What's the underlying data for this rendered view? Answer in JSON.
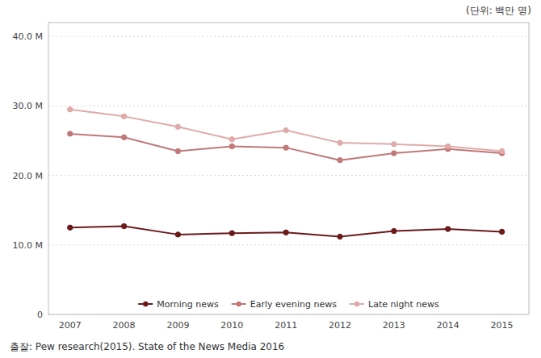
{
  "chart_data": {
    "type": "line",
    "annotations": [
      "(단위: 백만 명)",
      "출잘: Pew research(2015). State of the News Media 2016"
    ],
    "x": [
      2007,
      2008,
      2009,
      2010,
      2011,
      2012,
      2013,
      2014,
      2015
    ],
    "xlim": [
      2006.6,
      2015.5
    ],
    "xticks": [
      2007,
      2008,
      2009,
      2010,
      2011,
      2012,
      2013,
      2014,
      2015
    ],
    "series": [
      {
        "name": "Morning news",
        "color": "#6b1a1a",
        "marker": "circle",
        "values": [
          12.5,
          12.7,
          11.5,
          11.7,
          11.8,
          11.2,
          12.0,
          12.3,
          11.9
        ]
      },
      {
        "name": "Early evening news",
        "color": "#c07878",
        "marker": "circle",
        "values": [
          26.0,
          25.5,
          23.5,
          24.2,
          24.0,
          22.2,
          23.2,
          23.8,
          23.2
        ]
      },
      {
        "name": "Late night news",
        "color": "#e0aaaa",
        "marker": "circle",
        "values": [
          29.5,
          28.5,
          27.0,
          25.2,
          26.5,
          24.7,
          24.5,
          24.2,
          23.5
        ]
      }
    ],
    "ylim": [
      0,
      42
    ],
    "yticks": [
      0,
      {
        "value": 10.0,
        "label": "10.0 M"
      },
      {
        "value": 20.0,
        "label": "20.0 M"
      },
      {
        "value": 30.0,
        "label": "30.0 M"
      },
      {
        "value": 40.0,
        "label": "40.0 M"
      }
    ],
    "grid": true,
    "legend": "bottom"
  }
}
